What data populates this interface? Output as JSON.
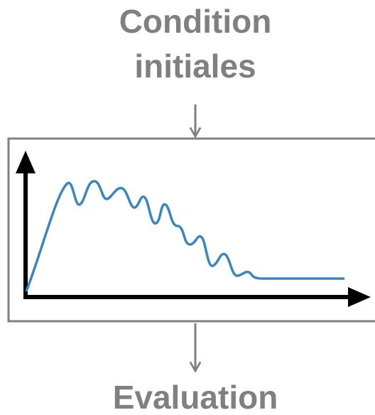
{
  "input": {
    "lines": [
      "Condition",
      "initiales"
    ]
  },
  "output": {
    "label": "Evaluation"
  }
}
